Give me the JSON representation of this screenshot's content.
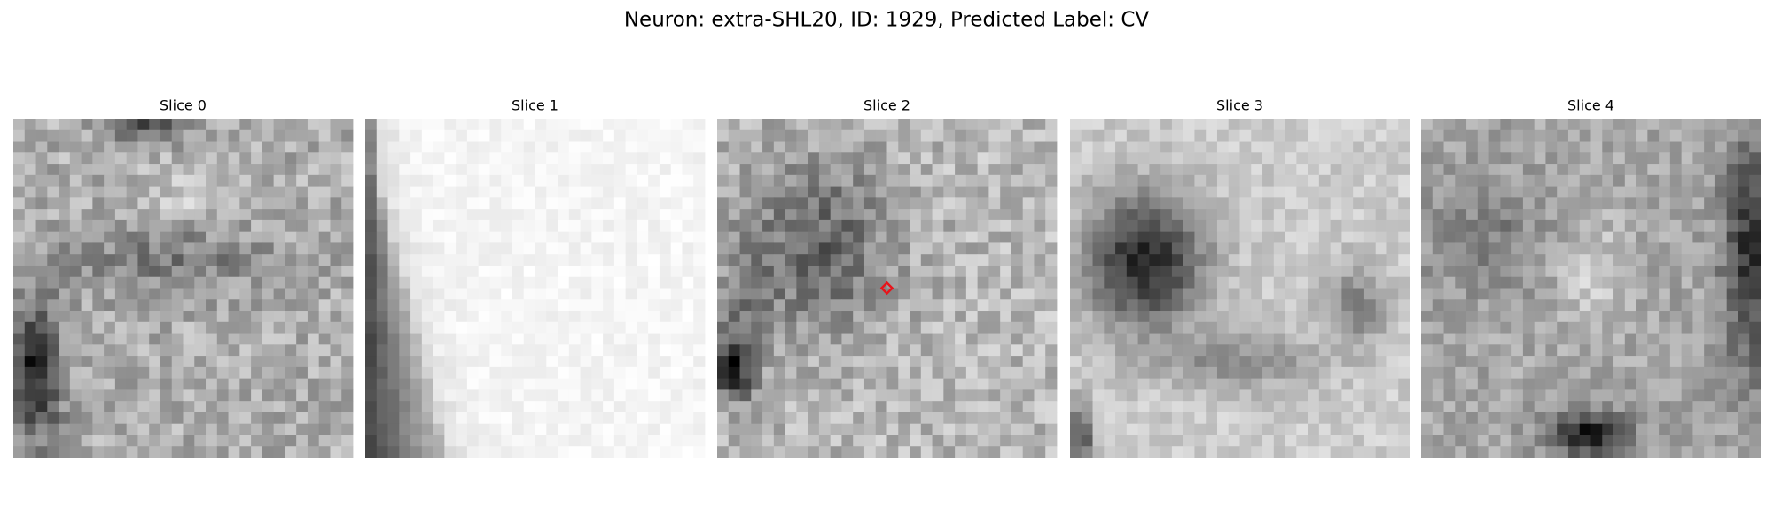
{
  "header": {
    "title": "Neuron: extra-SHL20, ID: 1929, Predicted Label: CV"
  },
  "panels": [
    {
      "title": "Slice 0"
    },
    {
      "title": "Slice 1"
    },
    {
      "title": "Slice 2"
    },
    {
      "title": "Slice 3"
    },
    {
      "title": "Slice 4"
    }
  ]
}
